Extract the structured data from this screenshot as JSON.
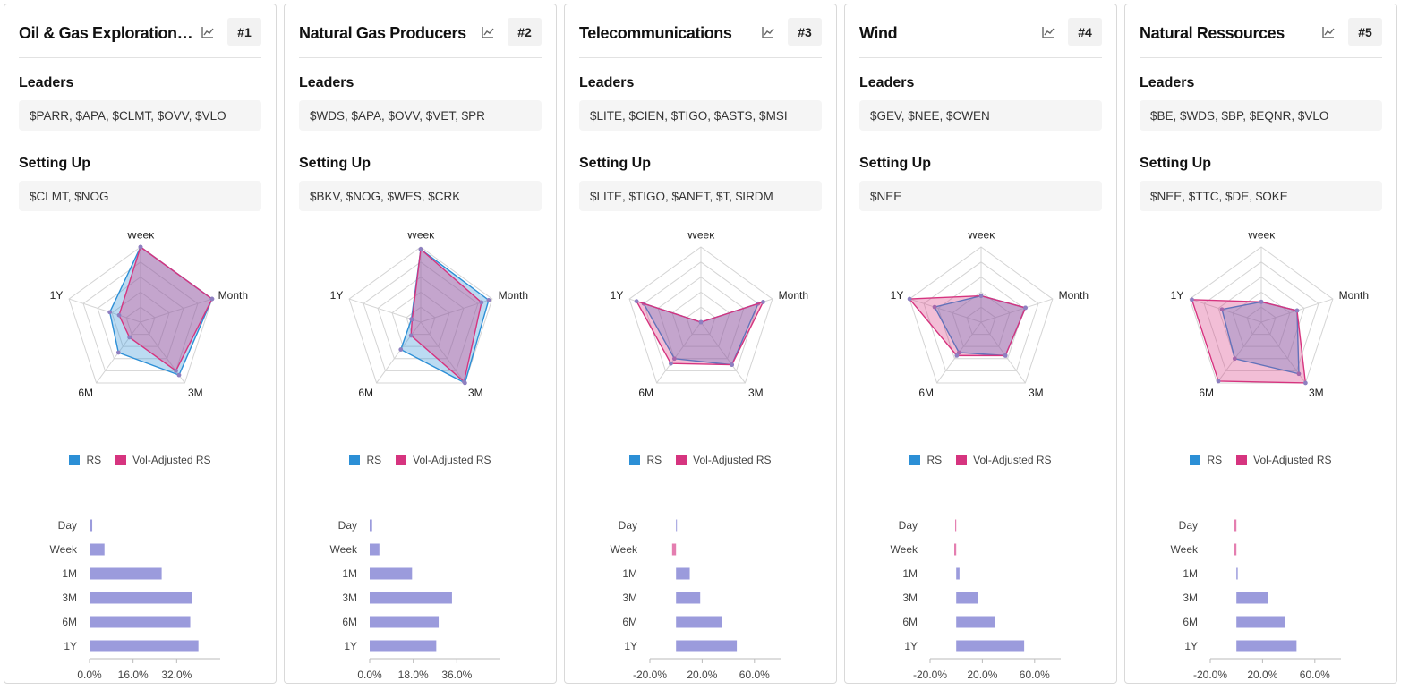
{
  "legend": {
    "rs": "RS",
    "vol": "Vol-Adjusted RS"
  },
  "colors": {
    "rs": "#2c8fd6",
    "vol": "#d6347f",
    "bar": "#9b9bdc",
    "grid": "#d4d4d4"
  },
  "icons": {
    "chart": "line-chart-icon"
  },
  "labels": {
    "leaders": "Leaders",
    "setting_up": "Setting Up"
  },
  "cards": [
    {
      "title": "Oil & Gas Exploration & Production",
      "rank": "#1",
      "leaders": "$PARR, $APA, $CLMT, $OVV, $VLO",
      "setting_up": "$CLMT, $NOG",
      "chart_data": {
        "type": "radar",
        "axes": [
          "Week",
          "Month",
          "3M",
          "6M",
          "1Y"
        ],
        "series": [
          {
            "name": "RS",
            "values": [
              1.0,
              1.0,
              0.87,
              0.5,
              0.43
            ]
          },
          {
            "name": "Vol-Adjusted RS",
            "values": [
              1.0,
              1.0,
              0.8,
              0.25,
              0.3
            ]
          }
        ]
      },
      "bar_data": {
        "type": "bar",
        "categories": [
          "Day",
          "Week",
          "1M",
          "3M",
          "6M",
          "1Y"
        ],
        "values": [
          1.0,
          5.5,
          26.5,
          37.5,
          37.0,
          40.0
        ],
        "xlim": [
          0,
          48
        ],
        "ticks": [
          0,
          16,
          32
        ],
        "tick_labels": [
          "0.0%",
          "16.0%",
          "32.0%"
        ]
      }
    },
    {
      "title": "Natural Gas Producers",
      "rank": "#2",
      "leaders": "$WDS, $APA, $OVV, $VET, $PR",
      "setting_up": "$BKV, $NOG, $WES, $CRK",
      "chart_data": {
        "type": "radar",
        "axes": [
          "Week",
          "Month",
          "3M",
          "6M",
          "1Y"
        ],
        "series": [
          {
            "name": "RS",
            "values": [
              0.97,
              0.95,
              1.0,
              0.45,
              0.13
            ]
          },
          {
            "name": "Vol-Adjusted RS",
            "values": [
              0.97,
              0.85,
              0.98,
              0.22,
              0.12
            ]
          }
        ]
      },
      "bar_data": {
        "type": "bar",
        "categories": [
          "Day",
          "Week",
          "1M",
          "3M",
          "6M",
          "1Y"
        ],
        "values": [
          1.0,
          4.0,
          17.5,
          34.0,
          28.5,
          27.5
        ],
        "xlim": [
          0,
          54
        ],
        "ticks": [
          0,
          18,
          36
        ],
        "tick_labels": [
          "0.0%",
          "18.0%",
          "36.0%"
        ]
      }
    },
    {
      "title": "Telecommunications",
      "rank": "#3",
      "leaders": "$LITE, $CIEN, $TIGO, $ASTS, $MSI",
      "setting_up": "$LITE, $TIGO, $ANET, $T, $IRDM",
      "chart_data": {
        "type": "radar",
        "axes": [
          "Week",
          "Month",
          "3M",
          "6M",
          "1Y"
        ],
        "series": [
          {
            "name": "RS",
            "values": [
              0.0,
              0.8,
              0.7,
              0.6,
              0.8
            ]
          },
          {
            "name": "Vol-Adjusted RS",
            "values": [
              0.0,
              0.87,
              0.7,
              0.68,
              0.9
            ]
          }
        ]
      },
      "bar_data": {
        "type": "bar",
        "categories": [
          "Day",
          "Week",
          "1M",
          "3M",
          "6M",
          "1Y"
        ],
        "values": [
          0.5,
          -3.0,
          10.5,
          18.5,
          35.0,
          46.5
        ],
        "xlim": [
          -20,
          80
        ],
        "ticks": [
          -20,
          20,
          60
        ],
        "tick_labels": [
          "-20.0%",
          "20.0%",
          "60.0%"
        ]
      }
    },
    {
      "title": "Wind",
      "rank": "#4",
      "leaders": "$GEV, $NEE, $CWEN",
      "setting_up": "$NEE",
      "chart_data": {
        "type": "radar",
        "axes": [
          "Week",
          "Month",
          "3M",
          "6M",
          "1Y"
        ],
        "series": [
          {
            "name": "RS",
            "values": [
              0.35,
              0.62,
              0.55,
              0.5,
              0.65
            ]
          },
          {
            "name": "Vol-Adjusted RS",
            "values": [
              0.35,
              0.62,
              0.55,
              0.55,
              1.0
            ]
          }
        ]
      },
      "bar_data": {
        "type": "bar",
        "categories": [
          "Day",
          "Week",
          "1M",
          "3M",
          "6M",
          "1Y"
        ],
        "values": [
          -0.8,
          -1.5,
          2.5,
          16.5,
          30.0,
          52.0
        ],
        "xlim": [
          -20,
          80
        ],
        "ticks": [
          -20,
          20,
          60
        ],
        "tick_labels": [
          "-20.0%",
          "20.0%",
          "60.0%"
        ]
      }
    },
    {
      "title": "Natural Ressources",
      "rank": "#5",
      "leaders": "$BE, $WDS, $BP, $EQNR, $VLO",
      "setting_up": "$NEE, $TTC, $DE, $OKE",
      "chart_data": {
        "type": "radar",
        "axes": [
          "Week",
          "Month",
          "3M",
          "6M",
          "1Y"
        ],
        "series": [
          {
            "name": "RS",
            "values": [
              0.27,
              0.5,
              0.85,
              0.6,
              0.55
            ]
          },
          {
            "name": "Vol-Adjusted RS",
            "values": [
              0.27,
              0.5,
              1.0,
              0.97,
              0.97
            ]
          }
        ]
      },
      "bar_data": {
        "type": "bar",
        "categories": [
          "Day",
          "Week",
          "1M",
          "3M",
          "6M",
          "1Y"
        ],
        "values": [
          -1.5,
          -1.5,
          1.0,
          24.0,
          37.5,
          46.0
        ],
        "xlim": [
          -20,
          80
        ],
        "ticks": [
          -20,
          20,
          60
        ],
        "tick_labels": [
          "-20.0%",
          "20.0%",
          "60.0%"
        ]
      }
    }
  ]
}
